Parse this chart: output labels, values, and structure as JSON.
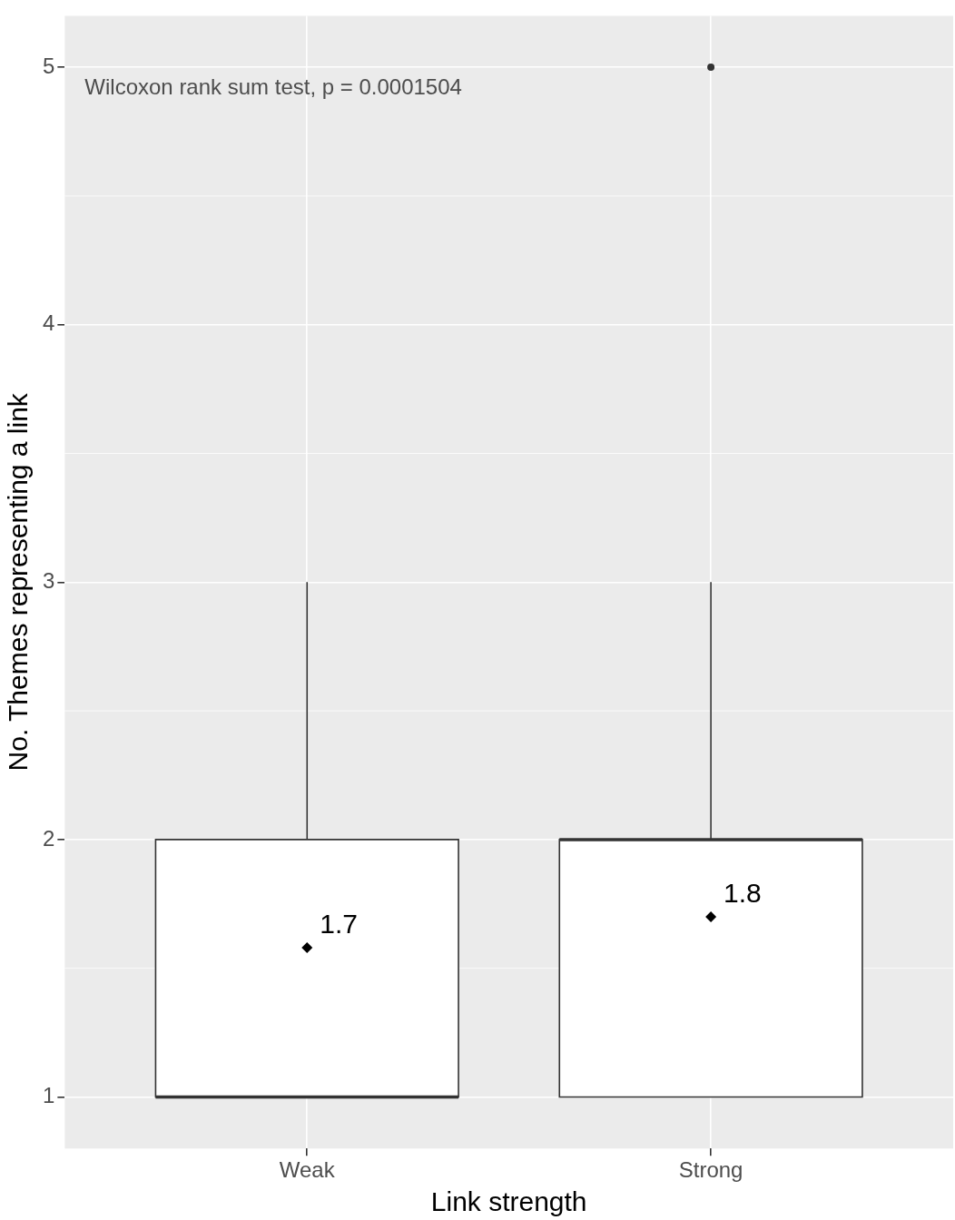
{
  "chart_data": {
    "type": "box",
    "xlabel": "Link strength",
    "ylabel": "No. Themes representing a link",
    "categories": [
      "Weak",
      "Strong"
    ],
    "boxes": [
      {
        "low": 1,
        "q1": 1,
        "median": 1,
        "q3": 2,
        "high": 3,
        "mean": 1.58
      },
      {
        "low": 1,
        "q1": 1,
        "median": 2,
        "q3": 2,
        "high": 3,
        "mean": 1.7,
        "outliers": [
          5
        ]
      }
    ],
    "ylim": [
      0.8,
      5.2
    ],
    "yticks": [
      1,
      2,
      3,
      4,
      5
    ],
    "grid": true,
    "annotations": [
      "Wilcoxon rank sum test, p = 0.0001504",
      "1.7",
      "1.8"
    ]
  }
}
